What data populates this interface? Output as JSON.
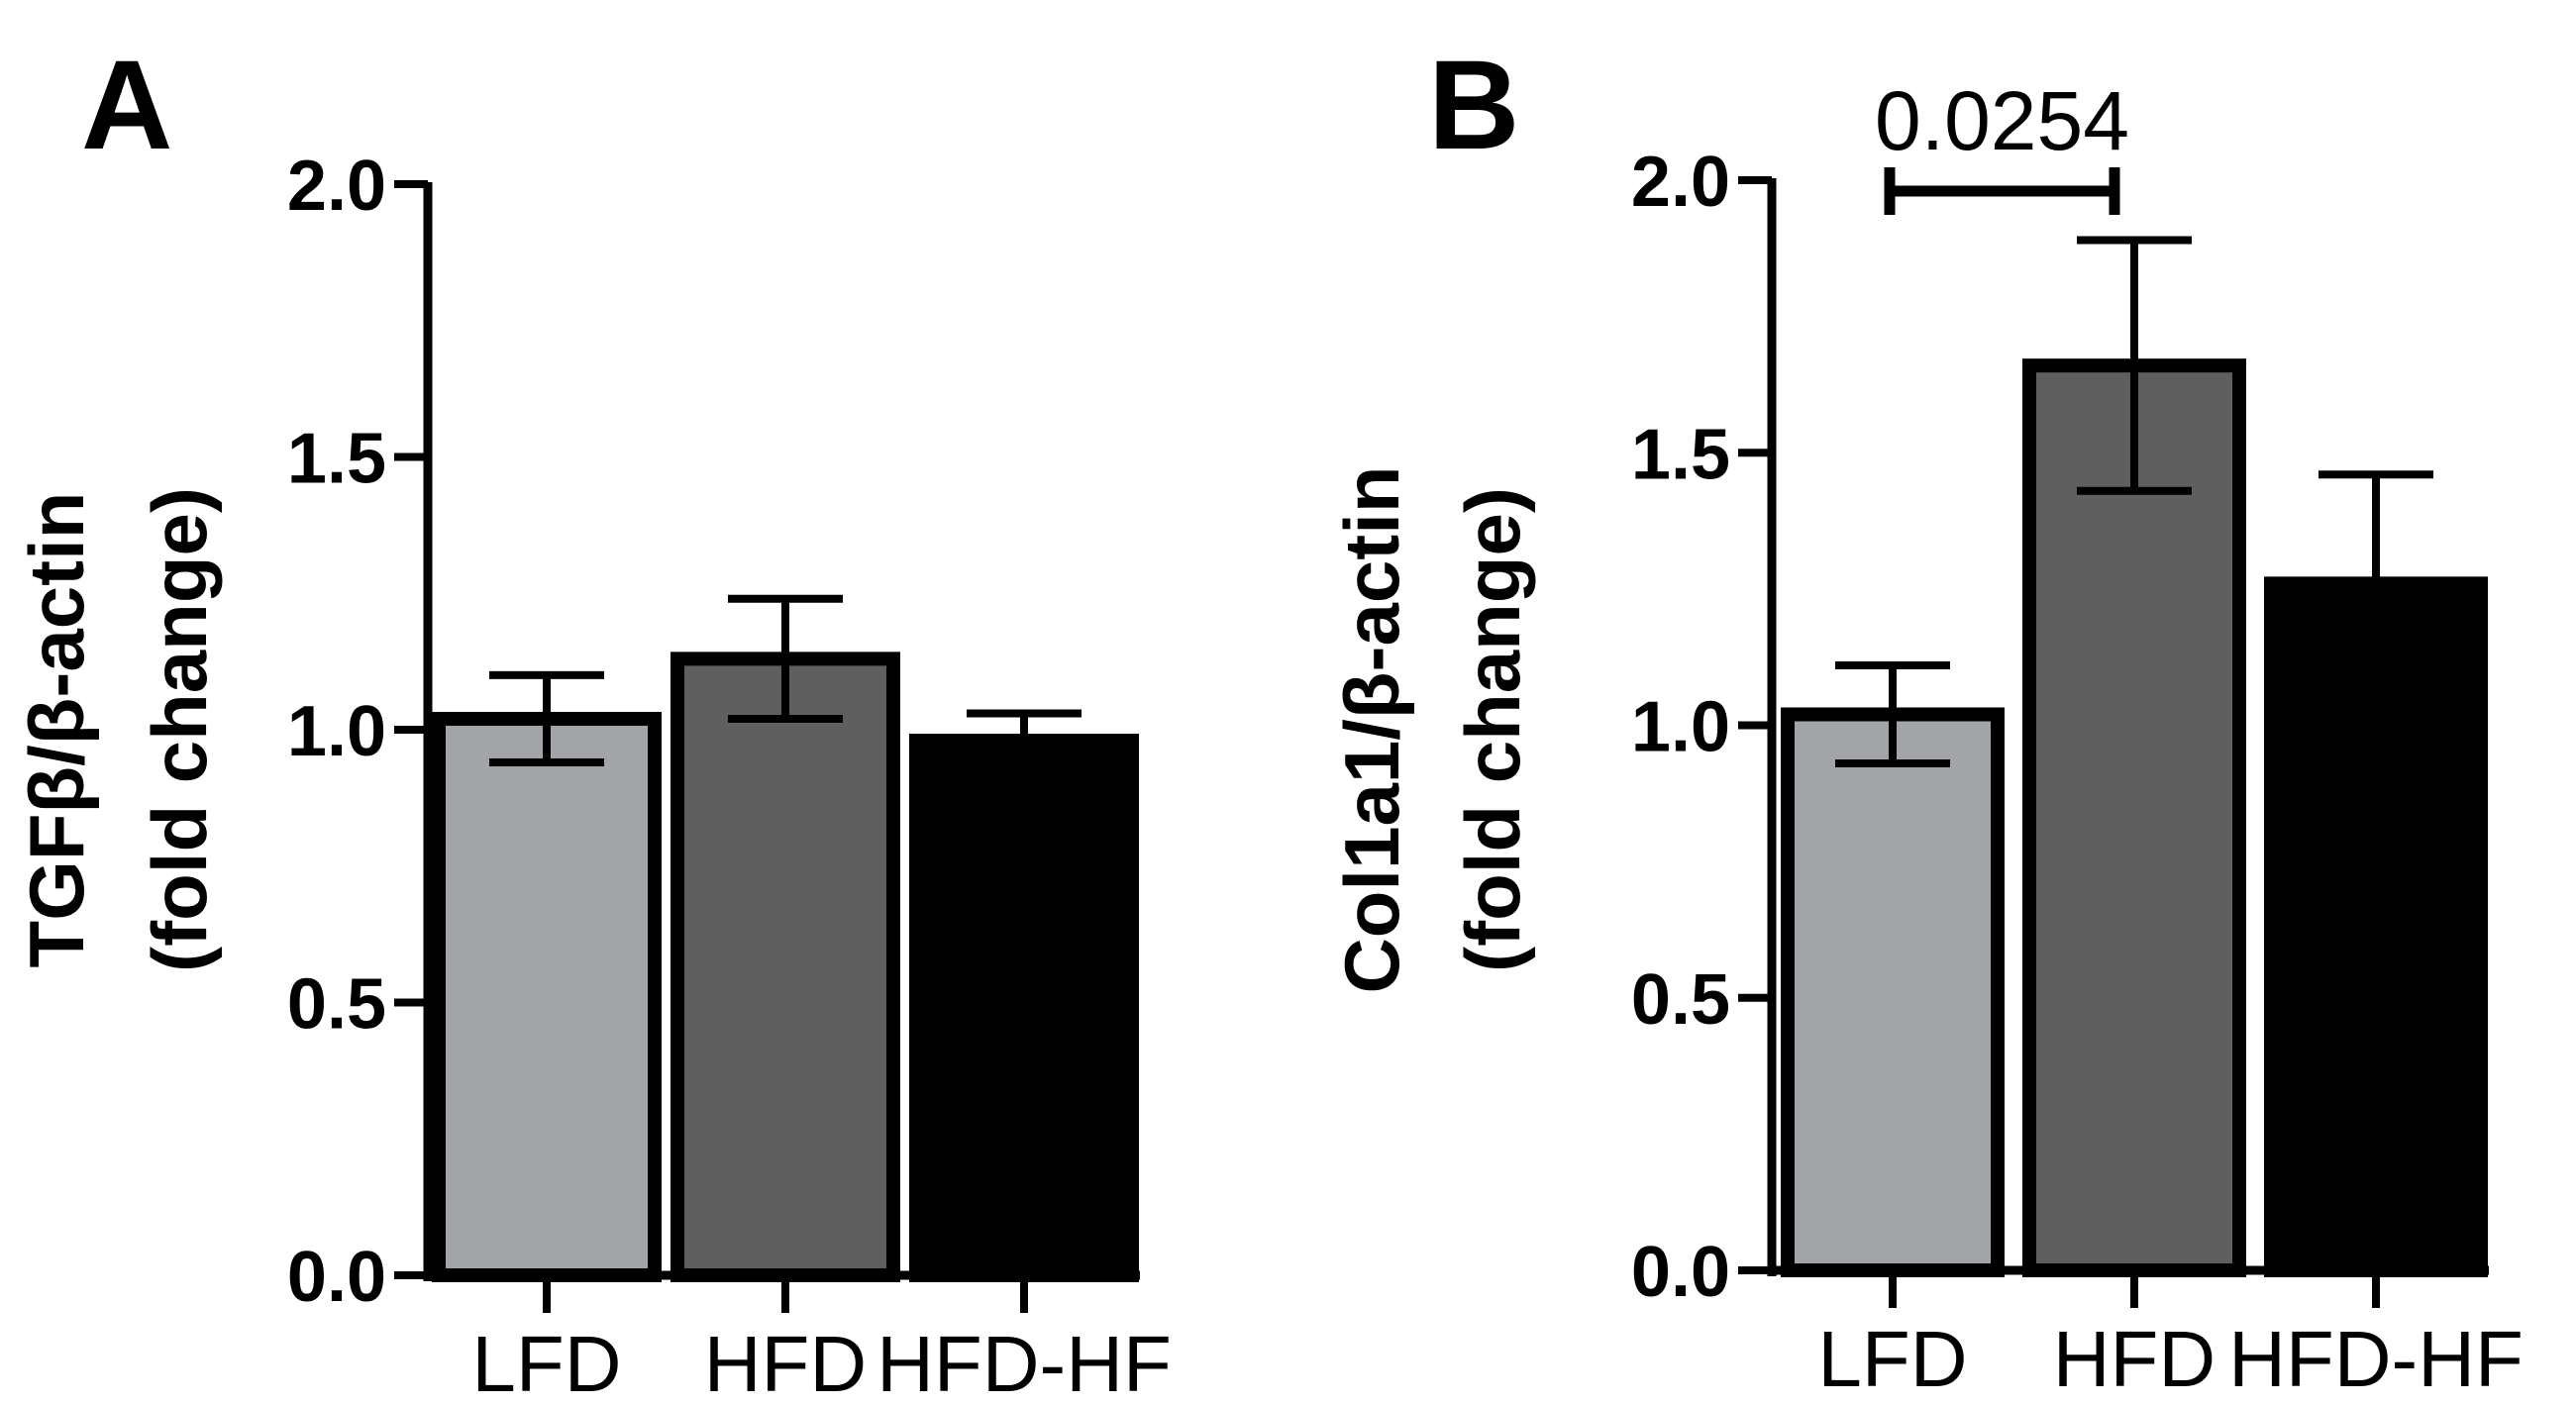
{
  "chart_data": [
    {
      "panel": "A",
      "type": "bar",
      "categories": [
        "LFD",
        "HFD",
        "HFD-HF"
      ],
      "values": [
        1.02,
        1.13,
        0.98
      ],
      "errors": [
        0.08,
        0.11,
        0.05
      ],
      "colors": [
        "#a3a4a8",
        "#5f5f5f",
        "#000000"
      ],
      "ylabel_line1": "TGFβ/β-actin",
      "ylabel_line2": "(fold change)",
      "ylim": [
        0.0,
        2.0
      ],
      "yticks": [
        "0.0",
        "0.5",
        "1.0",
        "1.5",
        "2.0"
      ],
      "annotation": null
    },
    {
      "panel": "B",
      "type": "bar",
      "categories": [
        "LFD",
        "HFD",
        "HFD-HF"
      ],
      "values": [
        1.02,
        1.66,
        1.26
      ],
      "errors": [
        0.09,
        0.23,
        0.2
      ],
      "colors": [
        "#a3a4a8",
        "#5f5f5f",
        "#000000"
      ],
      "ylabel_line1": "Col1a1/β-actin",
      "ylabel_line2": "(fold change)",
      "ylim": [
        0.0,
        2.0
      ],
      "yticks": [
        "0.0",
        "0.5",
        "1.0",
        "1.5",
        "2.0"
      ],
      "annotation": {
        "text": "0.0254",
        "from": 0,
        "to": 1,
        "y": 1.98
      }
    }
  ]
}
